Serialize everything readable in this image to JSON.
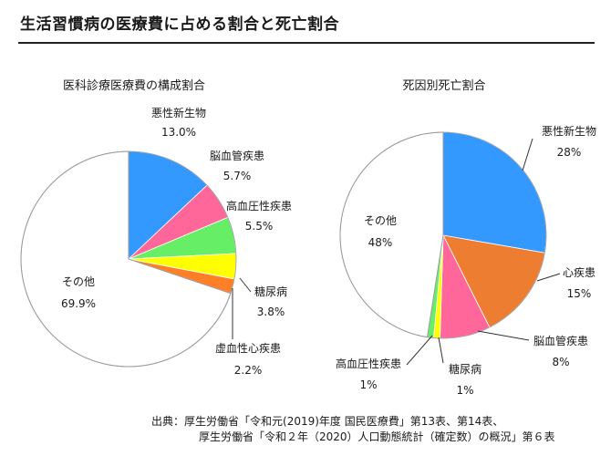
{
  "page": {
    "title": "生活習慣病の医療費に占める割合と死亡割合"
  },
  "source": {
    "prefix": "出典：",
    "line1": "厚生労働省「令和元(2019)年度 国民医療費」第13表、第14表、",
    "line2": "厚生労働省「令和２年（2020）人口動態統計（確定数）の概況」第６表"
  },
  "chart_data": [
    {
      "type": "pie",
      "title": "医科診療医療費の構成割合",
      "start_angle_deg": 0,
      "direction": "clockwise",
      "slices": [
        {
          "label": "悪性新生物",
          "value": 13.0,
          "display": "13.0%",
          "color": "#3399ff"
        },
        {
          "label": "脳血管疾患",
          "value": 5.7,
          "display": "5.7%",
          "color": "#ff6699"
        },
        {
          "label": "高血圧性疾患",
          "value": 5.5,
          "display": "5.5%",
          "color": "#66ee66"
        },
        {
          "label": "糖尿病",
          "value": 3.8,
          "display": "3.8%",
          "color": "#ffff00"
        },
        {
          "label": "虚血性心疾患",
          "value": 2.2,
          "display": "2.2%",
          "color": "#ff7f27"
        },
        {
          "label": "その他",
          "value": 69.9,
          "display": "69.9%",
          "color": "#ffffff"
        }
      ]
    },
    {
      "type": "pie",
      "title": "死因別死亡割合",
      "start_angle_deg": 0,
      "direction": "clockwise",
      "slices": [
        {
          "label": "悪性新生物",
          "value": 28,
          "display": "28%",
          "color": "#3399ff"
        },
        {
          "label": "心疾患",
          "value": 15,
          "display": "15%",
          "color": "#ed7d31"
        },
        {
          "label": "脳血管疾患",
          "value": 8,
          "display": "8%",
          "color": "#ff6699"
        },
        {
          "label": "糖尿病",
          "value": 1,
          "display": "1%",
          "color": "#ffff00"
        },
        {
          "label": "高血圧性疾患",
          "value": 1,
          "display": "1%",
          "color": "#66ee66"
        },
        {
          "label": "その他",
          "value": 48,
          "display": "48%",
          "color": "#ffffff"
        }
      ]
    }
  ]
}
